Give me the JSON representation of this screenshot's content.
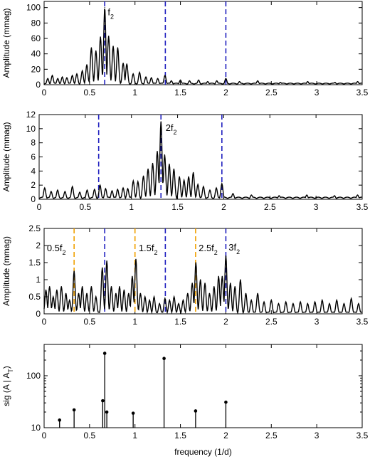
{
  "chart_data": [
    {
      "type": "line",
      "title": "",
      "xlabel": "",
      "ylabel": "Amplitude (mmag)",
      "xlim": [
        0,
        3.5
      ],
      "ylim": [
        0,
        108
      ],
      "x_ticks": [
        "0",
        "0.5",
        "1",
        "1.5",
        "2",
        "2.5",
        "3",
        "3.5"
      ],
      "y_ticks": [
        "0",
        "20",
        "40",
        "60",
        "80",
        "100"
      ],
      "grid": false,
      "annotations": [
        {
          "text": "f",
          "sub": "2",
          "x": 0.7,
          "y": 90
        }
      ],
      "marker_lines": [
        {
          "x": 0.667,
          "color": "#1f1fbf"
        },
        {
          "x": 1.334,
          "color": "#1f1fbf"
        },
        {
          "x": 2.0,
          "color": "#1f1fbf"
        }
      ],
      "peaks": [
        {
          "x": 0.667,
          "y": 100
        },
        {
          "x": 0.71,
          "y": 63
        },
        {
          "x": 0.62,
          "y": 62
        },
        {
          "x": 0.76,
          "y": 50
        },
        {
          "x": 0.57,
          "y": 44
        },
        {
          "x": 0.81,
          "y": 48
        },
        {
          "x": 0.52,
          "y": 48
        },
        {
          "x": 0.87,
          "y": 28
        },
        {
          "x": 0.47,
          "y": 26
        },
        {
          "x": 0.91,
          "y": 27
        },
        {
          "x": 0.42,
          "y": 18
        },
        {
          "x": 0.98,
          "y": 14
        },
        {
          "x": 0.36,
          "y": 14
        },
        {
          "x": 1.05,
          "y": 16
        },
        {
          "x": 0.31,
          "y": 12
        },
        {
          "x": 1.12,
          "y": 10
        },
        {
          "x": 0.25,
          "y": 9
        },
        {
          "x": 1.18,
          "y": 9
        },
        {
          "x": 0.2,
          "y": 10
        },
        {
          "x": 1.25,
          "y": 8
        },
        {
          "x": 0.15,
          "y": 8
        },
        {
          "x": 1.33,
          "y": 12
        },
        {
          "x": 0.09,
          "y": 12
        },
        {
          "x": 0.04,
          "y": 8
        },
        {
          "x": 1.4,
          "y": 5
        },
        {
          "x": 1.5,
          "y": 6
        },
        {
          "x": 1.6,
          "y": 5
        },
        {
          "x": 1.7,
          "y": 6
        },
        {
          "x": 1.8,
          "y": 4
        },
        {
          "x": 1.9,
          "y": 5
        },
        {
          "x": 2.0,
          "y": 8
        },
        {
          "x": 2.15,
          "y": 4
        },
        {
          "x": 2.35,
          "y": 5
        },
        {
          "x": 2.6,
          "y": 3
        },
        {
          "x": 2.9,
          "y": 4
        },
        {
          "x": 3.2,
          "y": 3
        },
        {
          "x": 3.45,
          "y": 4
        }
      ],
      "baseline": 2
    },
    {
      "type": "line",
      "title": "",
      "xlabel": "",
      "ylabel": "Amplitude (mmag)",
      "xlim": [
        0,
        3.5
      ],
      "ylim": [
        0,
        12
      ],
      "x_ticks": [
        "0",
        "0.5",
        "1",
        "1.5",
        "2",
        "2.5",
        "3",
        "3.5"
      ],
      "y_ticks": [
        "0",
        "2",
        "4",
        "6",
        "8",
        "10",
        "12"
      ],
      "grid": false,
      "annotations": [
        {
          "text": "2f",
          "sub": "2",
          "x": 1.37,
          "y": 9.7
        }
      ],
      "marker_lines": [
        {
          "x": 0.645,
          "color": "#1f1fbf"
        },
        {
          "x": 1.32,
          "color": "#1f1fbf"
        },
        {
          "x": 1.98,
          "color": "#1f1fbf"
        }
      ],
      "peaks": [
        {
          "x": 1.32,
          "y": 11
        },
        {
          "x": 1.36,
          "y": 6.3
        },
        {
          "x": 1.28,
          "y": 6.8
        },
        {
          "x": 1.41,
          "y": 5.0
        },
        {
          "x": 1.23,
          "y": 5.1
        },
        {
          "x": 1.46,
          "y": 4.3
        },
        {
          "x": 1.18,
          "y": 4.3
        },
        {
          "x": 1.52,
          "y": 3.2
        },
        {
          "x": 1.13,
          "y": 3.3
        },
        {
          "x": 1.57,
          "y": 2.7
        },
        {
          "x": 1.07,
          "y": 2.5
        },
        {
          "x": 1.62,
          "y": 3.2
        },
        {
          "x": 1.02,
          "y": 2.6
        },
        {
          "x": 1.67,
          "y": 3.8
        },
        {
          "x": 0.96,
          "y": 1.5
        },
        {
          "x": 1.72,
          "y": 2.1
        },
        {
          "x": 0.91,
          "y": 1.6
        },
        {
          "x": 1.78,
          "y": 1.8
        },
        {
          "x": 0.85,
          "y": 1.4
        },
        {
          "x": 0.79,
          "y": 1.2
        },
        {
          "x": 0.72,
          "y": 1.5
        },
        {
          "x": 0.66,
          "y": 2.0
        },
        {
          "x": 0.6,
          "y": 1.4
        },
        {
          "x": 0.52,
          "y": 1.3
        },
        {
          "x": 0.44,
          "y": 1.0
        },
        {
          "x": 0.36,
          "y": 1.8
        },
        {
          "x": 0.28,
          "y": 1.1
        },
        {
          "x": 0.2,
          "y": 1.3
        },
        {
          "x": 0.13,
          "y": 1.1
        },
        {
          "x": 0.06,
          "y": 1.6
        },
        {
          "x": 1.85,
          "y": 1.3
        },
        {
          "x": 1.92,
          "y": 1.6
        },
        {
          "x": 1.98,
          "y": 2.2
        },
        {
          "x": 2.1,
          "y": 0.8
        },
        {
          "x": 2.3,
          "y": 0.6
        },
        {
          "x": 2.6,
          "y": 0.5
        },
        {
          "x": 2.9,
          "y": 0.6
        },
        {
          "x": 3.2,
          "y": 0.5
        },
        {
          "x": 3.45,
          "y": 0.6
        }
      ],
      "baseline": 0.3
    },
    {
      "type": "line",
      "title": "",
      "xlabel": "",
      "ylabel": "Amplitude (mmag)",
      "xlim": [
        0,
        3.5
      ],
      "ylim": [
        0,
        2.5
      ],
      "x_ticks": [
        "0",
        "0.5",
        "1",
        "1.5",
        "2",
        "2.5",
        "3",
        "3.5"
      ],
      "y_ticks": [
        "0",
        "0.5",
        "1",
        "1.5",
        "2",
        "2.5"
      ],
      "grid": false,
      "annotations": [
        {
          "text": "0.5f",
          "sub": "2",
          "x": 0.03,
          "y": 1.83
        },
        {
          "text": "1.5f",
          "sub": "2",
          "x": 1.04,
          "y": 1.83
        },
        {
          "text": "2.5f",
          "sub": "2",
          "x": 1.7,
          "y": 1.83
        },
        {
          "text": "3f",
          "sub": "2",
          "x": 2.03,
          "y": 1.85
        }
      ],
      "marker_lines": [
        {
          "x": 0.33,
          "color": "#f0a000"
        },
        {
          "x": 0.667,
          "color": "#1f1fbf"
        },
        {
          "x": 1.0,
          "color": "#f0a000"
        },
        {
          "x": 1.334,
          "color": "#1f1fbf"
        },
        {
          "x": 1.667,
          "color": "#f0a000"
        },
        {
          "x": 2.0,
          "color": "#1f1fbf"
        }
      ],
      "peaks": [
        {
          "x": 0.02,
          "y": 0.7
        },
        {
          "x": 0.06,
          "y": 0.8
        },
        {
          "x": 0.1,
          "y": 0.5
        },
        {
          "x": 0.14,
          "y": 0.7
        },
        {
          "x": 0.19,
          "y": 0.8
        },
        {
          "x": 0.24,
          "y": 0.6
        },
        {
          "x": 0.28,
          "y": 0.4
        },
        {
          "x": 0.33,
          "y": 1.25
        },
        {
          "x": 0.38,
          "y": 0.6
        },
        {
          "x": 0.42,
          "y": 0.8
        },
        {
          "x": 0.47,
          "y": 0.6
        },
        {
          "x": 0.52,
          "y": 0.8
        },
        {
          "x": 0.57,
          "y": 0.5
        },
        {
          "x": 0.64,
          "y": 1.35
        },
        {
          "x": 0.69,
          "y": 1.55
        },
        {
          "x": 0.74,
          "y": 0.8
        },
        {
          "x": 0.79,
          "y": 0.6
        },
        {
          "x": 0.83,
          "y": 0.8
        },
        {
          "x": 0.88,
          "y": 0.7
        },
        {
          "x": 0.93,
          "y": 0.6
        },
        {
          "x": 0.97,
          "y": 1.1
        },
        {
          "x": 1.01,
          "y": 1.6
        },
        {
          "x": 1.06,
          "y": 0.6
        },
        {
          "x": 1.11,
          "y": 0.5
        },
        {
          "x": 1.16,
          "y": 0.4
        },
        {
          "x": 1.21,
          "y": 0.5
        },
        {
          "x": 1.27,
          "y": 0.3
        },
        {
          "x": 1.33,
          "y": 0.45
        },
        {
          "x": 1.38,
          "y": 0.4
        },
        {
          "x": 1.43,
          "y": 0.5
        },
        {
          "x": 1.48,
          "y": 0.3
        },
        {
          "x": 1.53,
          "y": 0.4
        },
        {
          "x": 1.58,
          "y": 0.6
        },
        {
          "x": 1.63,
          "y": 0.9
        },
        {
          "x": 1.67,
          "y": 1.5
        },
        {
          "x": 1.72,
          "y": 1.0
        },
        {
          "x": 1.77,
          "y": 0.9
        },
        {
          "x": 1.82,
          "y": 0.6
        },
        {
          "x": 1.87,
          "y": 0.8
        },
        {
          "x": 1.92,
          "y": 1.1
        },
        {
          "x": 1.96,
          "y": 1.1
        },
        {
          "x": 2.0,
          "y": 1.7
        },
        {
          "x": 2.05,
          "y": 0.9
        },
        {
          "x": 2.1,
          "y": 0.8
        },
        {
          "x": 2.16,
          "y": 1.0
        },
        {
          "x": 2.22,
          "y": 0.6
        },
        {
          "x": 2.28,
          "y": 0.4
        },
        {
          "x": 2.35,
          "y": 0.6
        },
        {
          "x": 2.42,
          "y": 0.35
        },
        {
          "x": 2.5,
          "y": 0.4
        },
        {
          "x": 2.58,
          "y": 0.3
        },
        {
          "x": 2.66,
          "y": 0.35
        },
        {
          "x": 2.74,
          "y": 0.3
        },
        {
          "x": 2.82,
          "y": 0.35
        },
        {
          "x": 2.9,
          "y": 0.3
        },
        {
          "x": 2.98,
          "y": 0.35
        },
        {
          "x": 3.06,
          "y": 0.4
        },
        {
          "x": 3.14,
          "y": 0.3
        },
        {
          "x": 3.22,
          "y": 0.4
        },
        {
          "x": 3.3,
          "y": 0.3
        },
        {
          "x": 3.38,
          "y": 0.45
        },
        {
          "x": 3.46,
          "y": 0.3
        }
      ],
      "baseline": 0.05
    },
    {
      "type": "scatter",
      "title": "",
      "xlabel": "frequency (1/d)",
      "ylabel": "sig (A | A",
      "ylabel_sub": "T",
      "ylabel_suffix": ")",
      "xlim": [
        0,
        3.5
      ],
      "ylim": [
        10,
        400
      ],
      "yscale": "log",
      "x_ticks": [
        "0",
        "0.5",
        "1",
        "1.5",
        "2",
        "2.5",
        "3",
        "3.5"
      ],
      "y_ticks": [
        "10",
        "100"
      ],
      "grid": false,
      "style": "stem",
      "points": [
        {
          "x": 0.17,
          "y": 14
        },
        {
          "x": 0.33,
          "y": 22
        },
        {
          "x": 0.645,
          "y": 33
        },
        {
          "x": 0.667,
          "y": 270
        },
        {
          "x": 0.69,
          "y": 20
        },
        {
          "x": 0.98,
          "y": 19
        },
        {
          "x": 1.32,
          "y": 215
        },
        {
          "x": 1.667,
          "y": 21
        },
        {
          "x": 2.0,
          "y": 31
        }
      ]
    }
  ]
}
